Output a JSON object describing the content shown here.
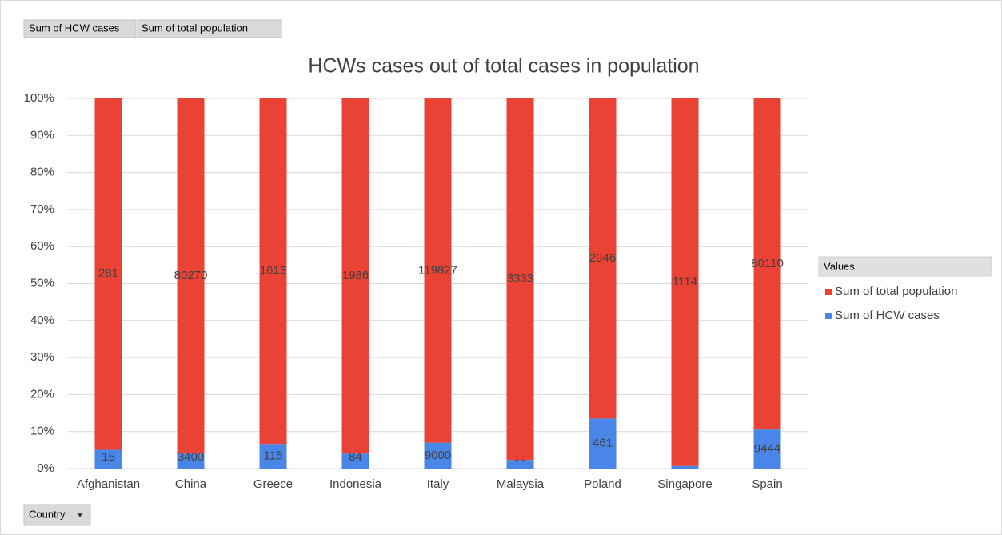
{
  "chart_data": {
    "type": "bar",
    "stacking": "percent",
    "title": "HCWs cases out of total cases in population",
    "field_buttons": [
      "Sum of HCW cases",
      "Sum of total population"
    ],
    "axis_field_button": "Country",
    "legend_title": "Values",
    "legend": "right",
    "grid": true,
    "categories": [
      "Afghanistan",
      "China",
      "Greece",
      "Indonesia",
      "Italy",
      "Malaysia",
      "Poland",
      "Singapore",
      "Spain"
    ],
    "series": [
      {
        "name": "Sum of HCW cases",
        "color": "#4a86e8",
        "values": [
          15,
          3400,
          115,
          84,
          9000,
          80,
          461,
          8,
          9444
        ]
      },
      {
        "name": "Sum of total population",
        "color": "#ea4335",
        "values": [
          281,
          80270,
          1613,
          1986,
          119827,
          3333,
          2946,
          1114,
          80110
        ]
      }
    ],
    "ylim": [
      0,
      100
    ],
    "yticks": [
      {
        "value": 0,
        "label": "0%"
      },
      {
        "value": 10,
        "label": "10%"
      },
      {
        "value": 20,
        "label": "20%"
      },
      {
        "value": 30,
        "label": "30%"
      },
      {
        "value": 40,
        "label": "40%"
      },
      {
        "value": 50,
        "label": "50%"
      },
      {
        "value": 60,
        "label": "60%"
      },
      {
        "value": 70,
        "label": "70%"
      },
      {
        "value": 80,
        "label": "80%"
      },
      {
        "value": 90,
        "label": "90%"
      },
      {
        "value": 100,
        "label": "100%"
      }
    ]
  }
}
